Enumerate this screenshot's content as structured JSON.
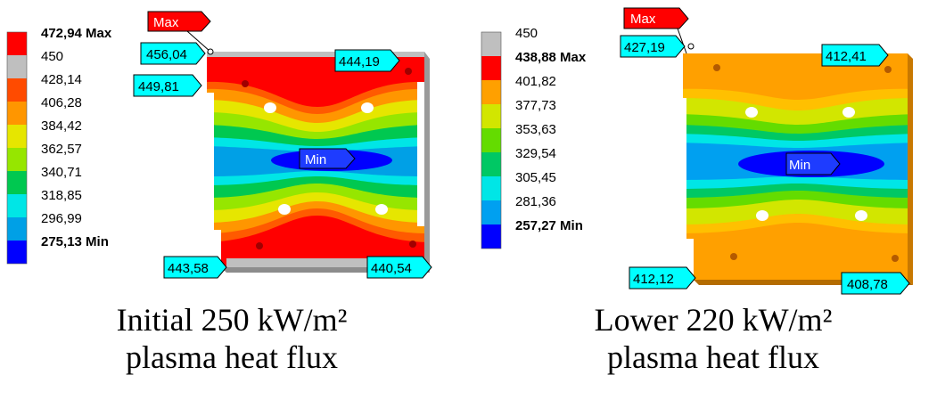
{
  "left_panel": {
    "legend": [
      {
        "label": "472,94 Max",
        "color": "#ff0000",
        "bold": true
      },
      {
        "label": "450",
        "color": "#bfbfbf",
        "bold": false
      },
      {
        "label": "428,14",
        "color": "#ff4b00",
        "bold": false
      },
      {
        "label": "406,28",
        "color": "#ff9600",
        "bold": false
      },
      {
        "label": "384,42",
        "color": "#e6e600",
        "bold": false
      },
      {
        "label": "362,57",
        "color": "#96e600",
        "bold": false
      },
      {
        "label": "340,71",
        "color": "#00c850",
        "bold": false
      },
      {
        "label": "318,85",
        "color": "#00e6e6",
        "bold": false
      },
      {
        "label": "296,99",
        "color": "#00a0e6",
        "bold": false
      },
      {
        "label": "275,13 Min",
        "color": "#0000ff",
        "bold": true
      }
    ],
    "max_tag": "Max",
    "min_tag": "Min",
    "probes": [
      "456,04",
      "449,81",
      "444,19",
      "443,58",
      "440,54"
    ],
    "caption_line1": "Initial 250 kW/m²",
    "caption_line2": "plasma heat flux"
  },
  "right_panel": {
    "legend": [
      {
        "label": "450",
        "color": "#bfbfbf",
        "bold": false
      },
      {
        "label": "438,88 Max",
        "color": "#ff0000",
        "bold": true
      },
      {
        "label": "401,82",
        "color": "#ffa000",
        "bold": false
      },
      {
        "label": "377,73",
        "color": "#d2e600",
        "bold": false
      },
      {
        "label": "353,63",
        "color": "#64dc00",
        "bold": false
      },
      {
        "label": "329,54",
        "color": "#00c864",
        "bold": false
      },
      {
        "label": "305,45",
        "color": "#00e6e6",
        "bold": false
      },
      {
        "label": "281,36",
        "color": "#00a0f0",
        "bold": false
      },
      {
        "label": "257,27 Min",
        "color": "#0000ff",
        "bold": true
      }
    ],
    "max_tag": "Max",
    "min_tag": "Min",
    "probes": [
      "427,19",
      "412,41",
      "412,12",
      "408,78"
    ],
    "caption_line1": "Lower 220 kW/m²",
    "caption_line2": "plasma heat flux"
  },
  "colors": {
    "red": "#ff0000",
    "orange": "#ff9600",
    "yellow": "#e6e600",
    "green": "#50dc00",
    "cyan": "#00d2f0",
    "blue": "#0000ff",
    "grey": "#bfbfbf",
    "probe_fill": "#00ffff"
  }
}
